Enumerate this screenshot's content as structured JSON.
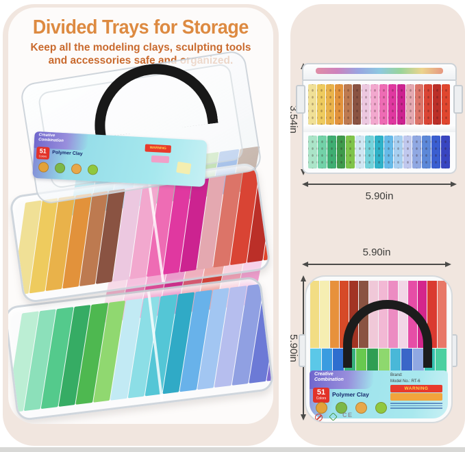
{
  "header": {
    "title": "Divided Trays for Storage",
    "subtitle": "Keep all the modeling clays, sculpting tools and accessories safe and organized."
  },
  "dimensions": {
    "side_height": "3.54in",
    "side_width": "5.90in",
    "top_width": "5.90in",
    "top_height": "5.90in"
  },
  "product_label": {
    "brand_line1": "Creative",
    "brand_line2": "Combination",
    "count": "51",
    "count_unit": "Colors",
    "product_name": "Polymer Clay",
    "warning": "WARNING",
    "brand_field": "Brand:",
    "model_field": "Model No.: RT-6",
    "ce_mark": "CE"
  },
  "icons": {
    "animals": [
      {
        "name": "duck",
        "color": "#e2a23a"
      },
      {
        "name": "crocodile",
        "color": "#7cb848"
      },
      {
        "name": "lion",
        "color": "#e8a84a"
      },
      {
        "name": "dinosaur",
        "color": "#90c83e"
      }
    ]
  },
  "colors": {
    "panel_bg": "#f1e6df",
    "title_accent": "#dd8a41",
    "subtitle_accent": "#c96a2e",
    "dimension_text": "#3b3b39",
    "handle_black": "#1c1c1c",
    "clay_warm": [
      "#f0e096",
      "#eecb5e",
      "#e9b24a",
      "#e2923b",
      "#bd7a50",
      "#8a5342",
      "#ecc8e0",
      "#f2a8ce",
      "#ee6cb4",
      "#e038a0",
      "#cc2390",
      "#e4a8b0",
      "#dc7468",
      "#d94434",
      "#bb2f28",
      "#e0462e"
    ],
    "clay_cool": [
      "#aae4c8",
      "#72d2a8",
      "#3fae72",
      "#3f9a4b",
      "#7fc44a",
      "#cfe6f2",
      "#74d2da",
      "#2fb2c8",
      "#66bae8",
      "#a8cff0",
      "#c0c8ee",
      "#90a8e2",
      "#5c88d8",
      "#3a5ed0",
      "#3845c0"
    ],
    "top_view_warm": [
      "#f2dd84",
      "#f6eeb2",
      "#e7913c",
      "#d64a28",
      "#a23424",
      "#8a5342",
      "#f0c8d8",
      "#f2b8d4",
      "#ec8cc2",
      "#f2d6e6",
      "#e64da6",
      "#d4268c",
      "#da3a30",
      "#e87868"
    ],
    "top_view_cool": [
      "#5bc8e8",
      "#3a9ce0",
      "#2e6ecf",
      "#38b07c",
      "#68c94f",
      "#2f9e53",
      "#8ed86e",
      "#49b8d8",
      "#3a66c8",
      "#90a8e2",
      "#35c2b0",
      "#4cd0a0"
    ],
    "mid_tray_back": [
      "#4ec4d8",
      "#38a8c8",
      "#68b8e8",
      "#a0d8ea",
      "#48b87c",
      "#2e8f5a",
      "#7ac04c",
      "#2f6fd0",
      "#8a5a3c"
    ],
    "bottom_tray_front": [
      "#bceed4",
      "#8ce0ba",
      "#54ca8c",
      "#36ac64",
      "#4eb850",
      "#90d870",
      "#c2eaf4",
      "#8cdee6",
      "#54c6d6",
      "#30aac6",
      "#68b2ea",
      "#a2c6f2",
      "#b6beee",
      "#90a0e2",
      "#6c7ad6",
      "#7c6cd2"
    ],
    "bottom_tray_back": [
      "#f4b2ce",
      "#f07cba",
      "#ea469e",
      "#d82890",
      "#e25672",
      "#de3c32",
      "#f6a2ba",
      "#f4a0d2"
    ]
  }
}
